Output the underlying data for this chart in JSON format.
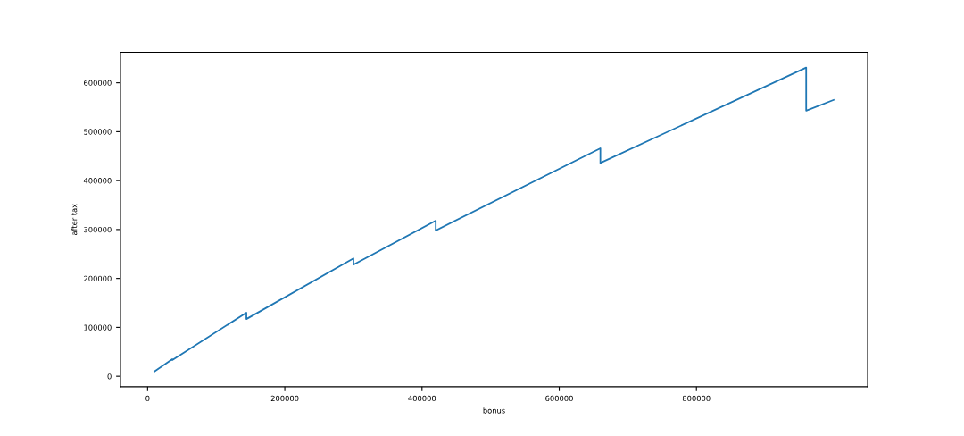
{
  "chart_data": {
    "type": "line",
    "xlabel": "bonus",
    "ylabel": "after tax",
    "series": [
      {
        "color": "#1f77b4",
        "x": [
          10000,
          36000,
          36001,
          144000,
          144001,
          300000,
          300001,
          420000,
          420001,
          660000,
          660001,
          960000,
          960001,
          1000000
        ],
        "values": [
          10000,
          35000,
          33000,
          130000,
          117000,
          241000,
          228000,
          318000,
          298000,
          466000,
          436000,
          631000,
          543000,
          565000
        ]
      }
    ],
    "xlim": [
      -39500,
      1049500
    ],
    "ylim": [
      -21373,
      662233
    ],
    "xticks": [
      0,
      200000,
      400000,
      600000,
      800000
    ],
    "yticks": [
      0,
      100000,
      200000,
      300000,
      400000,
      500000,
      600000
    ],
    "grid": false,
    "legend": false,
    "marker": "none",
    "line_style": "solid"
  }
}
